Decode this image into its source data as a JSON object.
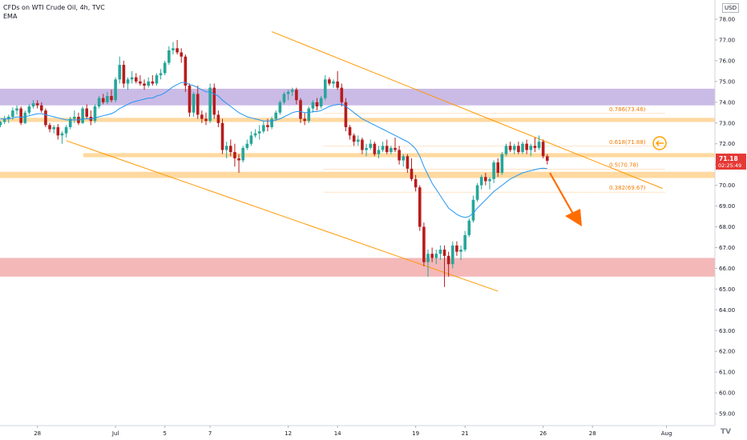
{
  "header": {
    "title": "CFDs on WTI Crude Oil, 4h, TVC",
    "indicator": "EMA",
    "currency": "USD"
  },
  "price_label": {
    "value": "71.18",
    "countdown": "02:25:49",
    "color": "#e53935"
  },
  "colors": {
    "up": "#26a69a",
    "down": "#b71c1c",
    "ema": "#2196f3",
    "channel": "#ff9800",
    "fib": "#f57c00",
    "purple_zone": "#b39ddb",
    "orange_zone": "#ffcc80",
    "red_zone": "#ef9a9a",
    "arrow": "#ff6d00"
  },
  "chart_data": {
    "type": "candlestick",
    "y_axis": {
      "min": 59,
      "max": 78,
      "ticks": [
        "78.00",
        "77.00",
        "76.00",
        "75.00",
        "74.00",
        "73.00",
        "72.00",
        "71.00",
        "70.00",
        "69.00",
        "68.00",
        "67.00",
        "66.00",
        "65.00",
        "64.00",
        "63.00",
        "62.00",
        "61.00",
        "60.00",
        "59.00"
      ]
    },
    "x_axis": {
      "ticks": [
        {
          "label": "28",
          "bar": 9
        },
        {
          "label": "Jul",
          "bar": 28
        },
        {
          "label": "5",
          "bar": 40
        },
        {
          "label": "7",
          "bar": 51
        },
        {
          "label": "12",
          "bar": 70
        },
        {
          "label": "14",
          "bar": 82
        },
        {
          "label": "19",
          "bar": 101
        },
        {
          "label": "21",
          "bar": 113
        },
        {
          "label": "26",
          "bar": 132
        },
        {
          "label": "28",
          "bar": 144
        },
        {
          "label": "Aug",
          "bar": 162
        }
      ]
    },
    "zones": [
      {
        "name": "purple-resistance",
        "from": 73.85,
        "to": 74.65,
        "color": "#b39ddb"
      },
      {
        "name": "orange-73",
        "from": 73.05,
        "to": 73.25,
        "color": "#ffcc80"
      },
      {
        "name": "orange-71-5",
        "from": 71.35,
        "to": 71.55,
        "color": "#ffcc80"
      },
      {
        "name": "orange-70-5",
        "from": 70.35,
        "to": 70.65,
        "color": "#ffcc80"
      },
      {
        "name": "red-support",
        "from": 65.6,
        "to": 66.5,
        "color": "#ef9a9a"
      }
    ],
    "fib_levels": [
      {
        "label": "0.786(73.46)",
        "value": 73.46
      },
      {
        "label": "0.618(71.88)",
        "value": 71.88
      },
      {
        "label": "0.5(70.78)",
        "value": 70.78
      },
      {
        "label": "0.382(69.67)",
        "value": 69.67
      }
    ],
    "ohlc": [
      [
        72.9,
        73.1,
        72.8,
        73.05
      ],
      [
        73.05,
        73.35,
        72.95,
        73.2
      ],
      [
        73.2,
        73.4,
        73.0,
        73.3
      ],
      [
        73.3,
        73.75,
        73.15,
        73.6
      ],
      [
        73.6,
        73.85,
        73.4,
        73.7
      ],
      [
        73.7,
        73.8,
        72.9,
        73.0
      ],
      [
        73.0,
        73.6,
        72.95,
        73.5
      ],
      [
        73.5,
        73.9,
        73.4,
        73.8
      ],
      [
        73.8,
        74.1,
        73.7,
        73.95
      ],
      [
        73.95,
        74.1,
        73.7,
        73.85
      ],
      [
        73.85,
        74.0,
        73.5,
        73.6
      ],
      [
        73.6,
        73.7,
        72.8,
        72.9
      ],
      [
        72.9,
        73.0,
        72.55,
        72.7
      ],
      [
        72.7,
        72.9,
        72.5,
        72.8
      ],
      [
        72.8,
        72.95,
        72.2,
        72.4
      ],
      [
        72.4,
        72.6,
        72.0,
        72.5
      ],
      [
        72.5,
        72.9,
        72.3,
        72.8
      ],
      [
        72.8,
        73.3,
        72.7,
        73.2
      ],
      [
        73.2,
        73.6,
        73.0,
        73.3
      ],
      [
        73.3,
        73.5,
        72.9,
        73.0
      ],
      [
        73.0,
        73.8,
        72.95,
        73.7
      ],
      [
        73.7,
        73.9,
        73.2,
        73.3
      ],
      [
        73.3,
        73.6,
        72.9,
        73.1
      ],
      [
        73.1,
        73.9,
        73.0,
        73.8
      ],
      [
        73.8,
        74.3,
        73.7,
        74.2
      ],
      [
        74.2,
        74.4,
        73.9,
        74.0
      ],
      [
        74.0,
        74.5,
        73.9,
        74.3
      ],
      [
        74.3,
        74.6,
        74.0,
        74.1
      ],
      [
        74.1,
        75.2,
        74.0,
        75.1
      ],
      [
        75.1,
        76.2,
        74.9,
        75.8
      ],
      [
        75.8,
        76.0,
        74.7,
        74.9
      ],
      [
        74.9,
        75.2,
        74.6,
        75.1
      ],
      [
        75.1,
        75.5,
        74.9,
        75.2
      ],
      [
        75.2,
        75.4,
        74.9,
        75.0
      ],
      [
        75.0,
        75.3,
        74.8,
        74.9
      ],
      [
        74.9,
        75.1,
        74.6,
        74.8
      ],
      [
        74.8,
        75.2,
        74.7,
        75.0
      ],
      [
        75.0,
        75.3,
        74.8,
        74.9
      ],
      [
        74.9,
        75.4,
        74.8,
        75.3
      ],
      [
        75.3,
        75.6,
        75.1,
        75.4
      ],
      [
        75.4,
        76.0,
        75.3,
        75.9
      ],
      [
        75.9,
        76.7,
        75.8,
        76.5
      ],
      [
        76.5,
        76.9,
        76.3,
        76.6
      ],
      [
        76.6,
        77.0,
        76.3,
        76.4
      ],
      [
        76.4,
        76.6,
        75.9,
        76.2
      ],
      [
        76.2,
        76.3,
        74.5,
        74.8
      ],
      [
        74.8,
        74.9,
        73.3,
        73.5
      ],
      [
        73.5,
        74.5,
        73.3,
        74.4
      ],
      [
        74.4,
        74.8,
        73.2,
        73.4
      ],
      [
        73.4,
        73.6,
        73.0,
        73.2
      ],
      [
        73.2,
        73.5,
        72.9,
        73.1
      ],
      [
        73.1,
        74.9,
        73.0,
        74.7
      ],
      [
        74.7,
        74.9,
        73.2,
        73.4
      ],
      [
        73.4,
        73.6,
        72.8,
        73.0
      ],
      [
        73.0,
        73.2,
        71.5,
        71.7
      ],
      [
        71.7,
        72.1,
        71.3,
        71.9
      ],
      [
        71.9,
        72.2,
        71.4,
        71.6
      ],
      [
        71.6,
        72.0,
        70.9,
        71.3
      ],
      [
        71.3,
        71.5,
        70.6,
        71.2
      ],
      [
        71.2,
        71.9,
        71.1,
        71.8
      ],
      [
        71.8,
        72.2,
        71.7,
        72.0
      ],
      [
        72.0,
        72.6,
        71.9,
        72.4
      ],
      [
        72.4,
        72.7,
        72.3,
        72.5
      ],
      [
        72.5,
        72.9,
        72.2,
        72.6
      ],
      [
        72.6,
        73.1,
        72.5,
        72.9
      ],
      [
        72.9,
        73.2,
        72.6,
        72.8
      ],
      [
        72.8,
        73.3,
        72.7,
        73.2
      ],
      [
        73.2,
        73.6,
        73.1,
        73.5
      ],
      [
        73.5,
        74.1,
        73.4,
        74.0
      ],
      [
        74.0,
        74.5,
        73.9,
        74.4
      ],
      [
        74.4,
        74.6,
        74.1,
        74.5
      ],
      [
        74.5,
        74.7,
        74.3,
        74.6
      ],
      [
        74.6,
        74.7,
        73.9,
        74.1
      ],
      [
        74.1,
        74.2,
        73.0,
        73.2
      ],
      [
        73.2,
        73.5,
        72.9,
        73.1
      ],
      [
        73.1,
        73.8,
        73.0,
        73.7
      ],
      [
        73.7,
        74.1,
        73.5,
        74.0
      ],
      [
        74.0,
        74.2,
        73.6,
        73.8
      ],
      [
        73.8,
        74.3,
        73.7,
        74.2
      ],
      [
        74.2,
        75.3,
        74.1,
        75.1
      ],
      [
        75.1,
        75.2,
        74.8,
        74.9
      ],
      [
        74.9,
        75.1,
        74.7,
        75.0
      ],
      [
        75.0,
        75.5,
        74.6,
        74.7
      ],
      [
        74.7,
        74.9,
        73.8,
        74.0
      ],
      [
        74.0,
        74.2,
        72.6,
        72.8
      ],
      [
        72.8,
        72.9,
        72.2,
        72.4
      ],
      [
        72.4,
        72.5,
        71.9,
        72.1
      ],
      [
        72.1,
        72.4,
        71.9,
        72.2
      ],
      [
        72.2,
        72.3,
        71.5,
        71.7
      ],
      [
        71.7,
        72.0,
        71.4,
        71.8
      ],
      [
        71.8,
        72.2,
        71.7,
        72.0
      ],
      [
        72.0,
        72.1,
        71.4,
        71.5
      ],
      [
        71.5,
        71.9,
        71.3,
        71.7
      ],
      [
        71.7,
        72.1,
        71.6,
        71.9
      ],
      [
        71.9,
        72.2,
        71.5,
        71.6
      ],
      [
        71.6,
        71.9,
        71.5,
        71.8
      ],
      [
        71.8,
        72.3,
        71.6,
        71.7
      ],
      [
        71.7,
        71.9,
        71.0,
        71.2
      ],
      [
        71.2,
        71.5,
        70.9,
        71.4
      ],
      [
        71.4,
        71.5,
        70.6,
        70.8
      ],
      [
        70.8,
        71.3,
        70.2,
        70.3
      ],
      [
        70.3,
        70.5,
        69.7,
        69.9
      ],
      [
        69.9,
        70.0,
        67.8,
        68.0
      ],
      [
        68.0,
        68.2,
        66.1,
        66.3
      ],
      [
        66.3,
        66.9,
        65.6,
        66.7
      ],
      [
        66.7,
        67.0,
        66.3,
        66.5
      ],
      [
        66.5,
        66.9,
        66.2,
        66.7
      ],
      [
        66.7,
        67.1,
        66.4,
        66.9
      ],
      [
        66.9,
        67.1,
        65.1,
        66.6
      ],
      [
        66.6,
        66.8,
        65.6,
        66.2
      ],
      [
        66.2,
        67.3,
        66.0,
        67.1
      ],
      [
        67.1,
        67.3,
        66.6,
        66.8
      ],
      [
        66.8,
        67.1,
        66.4,
        66.9
      ],
      [
        66.9,
        67.8,
        66.8,
        67.6
      ],
      [
        67.6,
        68.4,
        67.5,
        68.3
      ],
      [
        68.3,
        69.5,
        68.2,
        69.3
      ],
      [
        69.3,
        70.1,
        69.2,
        70.0
      ],
      [
        70.0,
        70.5,
        69.8,
        70.4
      ],
      [
        70.4,
        70.6,
        70.0,
        70.2
      ],
      [
        70.2,
        70.4,
        69.8,
        70.3
      ],
      [
        70.3,
        71.2,
        70.1,
        71.1
      ],
      [
        71.1,
        71.3,
        70.4,
        70.6
      ],
      [
        70.6,
        71.6,
        70.5,
        71.5
      ],
      [
        71.5,
        72.0,
        71.4,
        71.9
      ],
      [
        71.9,
        72.1,
        71.6,
        71.7
      ],
      [
        71.7,
        72.0,
        71.5,
        71.9
      ],
      [
        71.9,
        72.1,
        71.5,
        71.6
      ],
      [
        71.6,
        72.1,
        71.5,
        72.0
      ],
      [
        72.0,
        72.2,
        71.5,
        71.7
      ],
      [
        71.7,
        72.0,
        71.4,
        71.9
      ],
      [
        71.9,
        72.3,
        71.6,
        71.8
      ],
      [
        71.8,
        72.4,
        71.7,
        72.1
      ],
      [
        72.1,
        72.2,
        71.3,
        71.4
      ],
      [
        71.4,
        71.5,
        71.0,
        71.18
      ]
    ],
    "ema": [
      73.2,
      73.2,
      73.2,
      73.25,
      73.3,
      73.28,
      73.3,
      73.35,
      73.4,
      73.45,
      73.45,
      73.4,
      73.35,
      73.3,
      73.25,
      73.2,
      73.15,
      73.15,
      73.15,
      73.15,
      73.2,
      73.2,
      73.2,
      73.25,
      73.3,
      73.35,
      73.4,
      73.45,
      73.55,
      73.7,
      73.8,
      73.9,
      74.0,
      74.05,
      74.1,
      74.15,
      74.2,
      74.2,
      74.3,
      74.35,
      74.45,
      74.6,
      74.75,
      74.85,
      74.95,
      74.95,
      74.85,
      74.8,
      74.7,
      74.6,
      74.5,
      74.5,
      74.4,
      74.3,
      74.1,
      73.95,
      73.8,
      73.65,
      73.5,
      73.4,
      73.3,
      73.25,
      73.2,
      73.15,
      73.1,
      73.1,
      73.1,
      73.15,
      73.2,
      73.3,
      73.4,
      73.5,
      73.55,
      73.55,
      73.5,
      73.5,
      73.55,
      73.55,
      73.6,
      73.7,
      73.8,
      73.85,
      73.9,
      73.9,
      73.8,
      73.65,
      73.5,
      73.35,
      73.2,
      73.1,
      73.0,
      72.9,
      72.8,
      72.7,
      72.6,
      72.5,
      72.4,
      72.3,
      72.2,
      72.1,
      71.95,
      71.75,
      71.4,
      70.9,
      70.5,
      70.1,
      69.8,
      69.5,
      69.2,
      68.9,
      68.75,
      68.6,
      68.5,
      68.45,
      68.5,
      68.65,
      68.9,
      69.1,
      69.3,
      69.5,
      69.7,
      69.85,
      70.0,
      70.15,
      70.3,
      70.4,
      70.5,
      70.6,
      70.65,
      70.7,
      70.75,
      70.8,
      70.82,
      70.8
    ],
    "annotations": [
      {
        "name": "channel-upper",
        "from_bar": 66,
        "from_value": 77.4,
        "to_bar": 161,
        "to_value": 69.85
      },
      {
        "name": "channel-lower",
        "from_bar": 16,
        "from_value": 72.15,
        "to_bar": 121,
        "to_value": 64.9
      }
    ]
  }
}
